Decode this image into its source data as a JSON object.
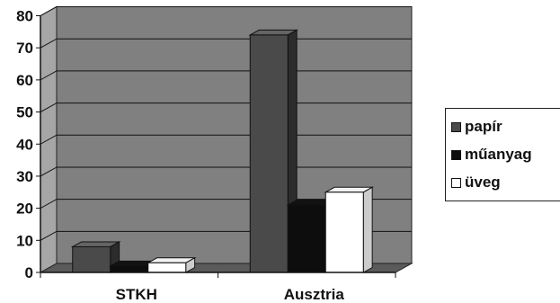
{
  "chart_data": {
    "type": "bar",
    "categories": [
      "STKH",
      "Ausztria"
    ],
    "series": [
      {
        "name": "papír",
        "values": [
          8,
          74
        ],
        "color": "#4a4a4a"
      },
      {
        "name": "műanyag",
        "values": [
          2,
          21
        ],
        "color": "#0d0d0d"
      },
      {
        "name": "üveg",
        "values": [
          3,
          25
        ],
        "color": "#ffffff"
      }
    ],
    "ylim": [
      0,
      80
    ],
    "yticks": [
      0,
      10,
      20,
      30,
      40,
      50,
      60,
      70,
      80
    ],
    "grid": true,
    "legend_position": "right",
    "plot_background": "#808080",
    "title": "",
    "xlabel": "",
    "ylabel": ""
  }
}
